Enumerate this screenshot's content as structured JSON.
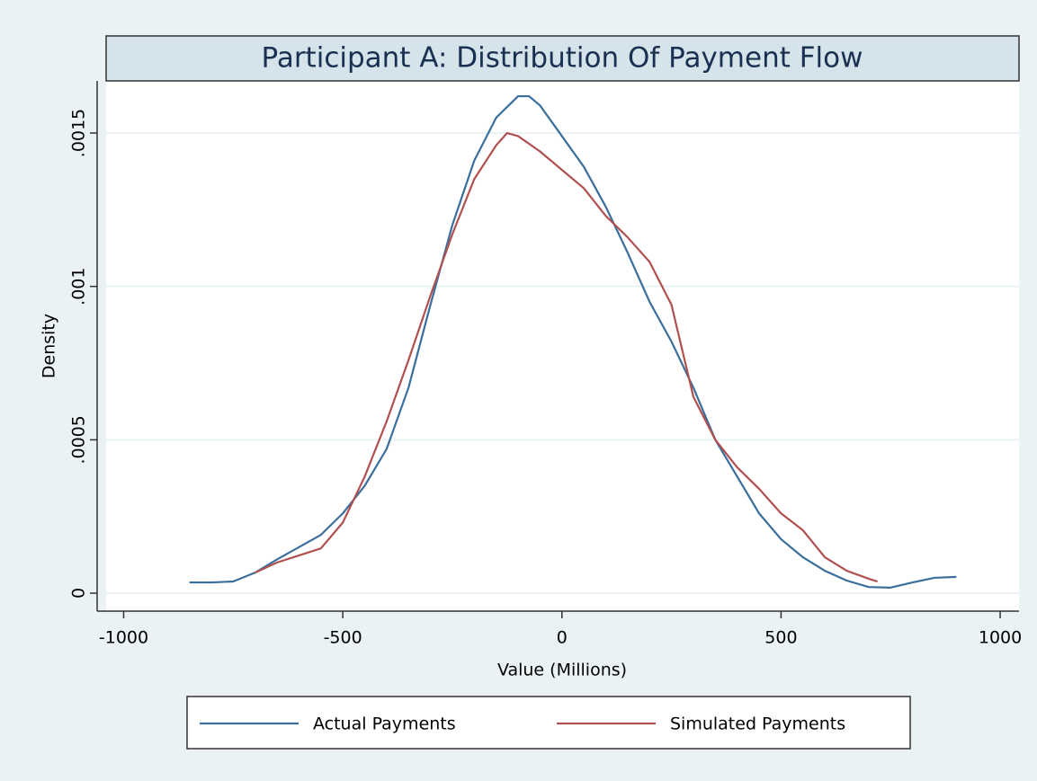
{
  "chart_data": {
    "type": "line",
    "title": "Participant A: Distribution Of Payment Flow",
    "x_label": "Value (Millions)",
    "y_label": "Density",
    "xlim": [
      -1040,
      1043
    ],
    "ylim": [
      -5.86e-05,
      0.00167
    ],
    "xticks": [
      -1000,
      -500,
      0,
      500,
      1000
    ],
    "yticks": [
      0,
      {
        "value": 0.0005,
        "label": ".0005"
      },
      {
        "value": 0.001,
        "label": ".001"
      },
      {
        "value": 0.0015,
        "label": ".0015"
      }
    ],
    "grid": true,
    "legend": "bottom",
    "series": [
      {
        "name": "Actual Payments",
        "color": "#3a6e9c",
        "x": [
          -850,
          -800,
          -750,
          -700,
          -650,
          -600,
          -550,
          -500,
          -450,
          -400,
          -350,
          -300,
          -250,
          -200,
          -150,
          -100,
          -75,
          -50,
          0,
          50,
          100,
          150,
          200,
          250,
          300,
          350,
          400,
          450,
          500,
          550,
          600,
          650,
          700,
          750,
          800,
          850,
          900
        ],
        "values": [
          3.5e-05,
          3.5e-05,
          3.8e-05,
          6.7e-05,
          0.00011,
          0.00015,
          0.00019,
          0.00026,
          0.00035,
          0.00047,
          0.00067,
          0.00094,
          0.0012,
          0.00141,
          0.00155,
          0.00162,
          0.00162,
          0.00159,
          0.00149,
          0.00139,
          0.00126,
          0.00111,
          0.00095,
          0.00082,
          0.00067,
          0.0005,
          0.00038,
          0.00026,
          0.000176,
          0.000117,
          7.3e-05,
          4.1e-05,
          2e-05,
          1.8e-05,
          3.5e-05,
          5e-05,
          5.3e-05
        ]
      },
      {
        "name": "Simulated Payments",
        "color": "#b0504f",
        "x": [
          -700,
          -650,
          -600,
          -550,
          -500,
          -450,
          -400,
          -350,
          -300,
          -250,
          -200,
          -150,
          -125,
          -100,
          -50,
          0,
          50,
          100,
          150,
          200,
          250,
          300,
          350,
          400,
          450,
          500,
          550,
          600,
          650,
          700,
          720
        ],
        "values": [
          6.7e-05,
          0.0001,
          0.000123,
          0.000146,
          0.00023,
          0.00038,
          0.00056,
          0.00076,
          0.00097,
          0.00117,
          0.00135,
          0.00146,
          0.0015,
          0.00149,
          0.00144,
          0.00138,
          0.00132,
          0.00123,
          0.00116,
          0.00108,
          0.00094,
          0.00064,
          0.0005,
          0.00041,
          0.00034,
          0.00026,
          0.000205,
          0.000117,
          7.3e-05,
          4.7e-05,
          3.8e-05
        ]
      }
    ]
  }
}
